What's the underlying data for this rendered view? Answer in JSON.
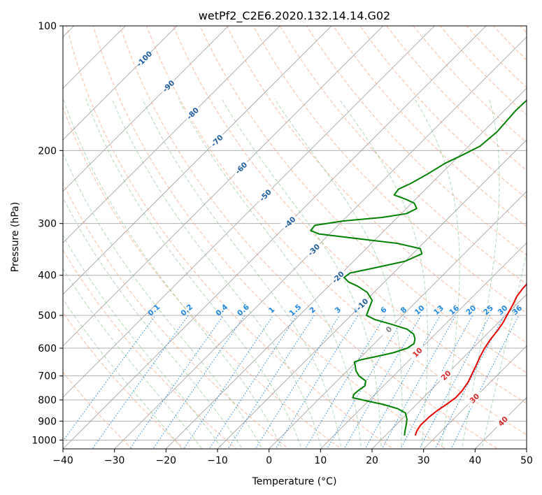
{
  "chart_data": {
    "type": "skew-t",
    "title": "wetPf2_C2E6.2020.132.14.14.G02",
    "xlabel": "Temperature (°C)",
    "ylabel": "Pressure (hPa)",
    "xlim": [
      -40,
      50
    ],
    "ylim": [
      1050,
      100
    ],
    "x_ticks": [
      "−40",
      "−30",
      "−20",
      "−10",
      "0",
      "10",
      "20",
      "30",
      "40",
      "50"
    ],
    "x_tick_values": [
      -40,
      -30,
      -20,
      -10,
      0,
      10,
      20,
      30,
      40,
      50
    ],
    "y_ticks": [
      "100",
      "200",
      "300",
      "400",
      "500",
      "600",
      "700",
      "800",
      "900",
      "1000"
    ],
    "y_tick_values": [
      100,
      200,
      300,
      400,
      500,
      600,
      700,
      800,
      900,
      1000
    ],
    "colors": {
      "temperature": "#e60000",
      "dewpoint": "#008000",
      "dry_adiabat": "#f4a582",
      "moist_adiabat": "#7fbf7f",
      "mixing_ratio": "#1e88e5",
      "isotherm": "#9e9e9e",
      "isotherm_label": "#1f5f9f",
      "mixing_label": "#1e88e5",
      "zero_label": "#808080",
      "positive_label": "#d62728"
    },
    "isotherm_labels": [
      {
        "t": -100,
        "text": "-100"
      },
      {
        "t": -90,
        "text": "-90"
      },
      {
        "t": -80,
        "text": "-80"
      },
      {
        "t": -70,
        "text": "-70"
      },
      {
        "t": -60,
        "text": "-60"
      },
      {
        "t": -50,
        "text": "-50"
      },
      {
        "t": -40,
        "text": "-40"
      },
      {
        "t": -30,
        "text": "-30"
      },
      {
        "t": -20,
        "text": "-20"
      },
      {
        "t": -10,
        "text": "-10"
      },
      {
        "t": 0,
        "text": "0"
      },
      {
        "t": 10,
        "text": "10"
      },
      {
        "t": 20,
        "text": "20"
      },
      {
        "t": 30,
        "text": "30"
      },
      {
        "t": 40,
        "text": "40"
      }
    ],
    "mixing_ratio_labels": [
      {
        "w": 0.1,
        "text": "0.1"
      },
      {
        "w": 0.2,
        "text": "0.2"
      },
      {
        "w": 0.4,
        "text": "0.4"
      },
      {
        "w": 0.6,
        "text": "0.6"
      },
      {
        "w": 1,
        "text": "1"
      },
      {
        "w": 1.5,
        "text": "1.5"
      },
      {
        "w": 2,
        "text": "2"
      },
      {
        "w": 3,
        "text": "3"
      },
      {
        "w": 4,
        "text": "4"
      },
      {
        "w": 6,
        "text": "6"
      },
      {
        "w": 8,
        "text": "8"
      },
      {
        "w": 10,
        "text": "10"
      },
      {
        "w": 13,
        "text": "13"
      },
      {
        "w": 16,
        "text": "16"
      },
      {
        "w": 20,
        "text": "20"
      },
      {
        "w": 25,
        "text": "25"
      },
      {
        "w": 30,
        "text": "30"
      },
      {
        "w": 36,
        "text": "36"
      }
    ],
    "temperature_profile": [
      {
        "p": 975,
        "t": 25.8
      },
      {
        "p": 950,
        "t": 25.2
      },
      {
        "p": 920,
        "t": 24.8
      },
      {
        "p": 880,
        "t": 24.9
      },
      {
        "p": 850,
        "t": 25.2
      },
      {
        "p": 820,
        "t": 25.8
      },
      {
        "p": 790,
        "t": 26.3
      },
      {
        "p": 760,
        "t": 26.2
      },
      {
        "p": 725,
        "t": 25.7
      },
      {
        "p": 690,
        "t": 24.8
      },
      {
        "p": 660,
        "t": 24.0
      },
      {
        "p": 630,
        "t": 23.1
      },
      {
        "p": 600,
        "t": 22.3
      },
      {
        "p": 570,
        "t": 21.7
      },
      {
        "p": 545,
        "t": 21.4
      },
      {
        "p": 520,
        "t": 20.9
      },
      {
        "p": 495,
        "t": 20.1
      },
      {
        "p": 470,
        "t": 19.3
      },
      {
        "p": 450,
        "t": 18.5
      },
      {
        "p": 430,
        "t": 18.1
      },
      {
        "p": 410,
        "t": 18.0
      },
      {
        "p": 390,
        "t": 17.6
      },
      {
        "p": 370,
        "t": 16.6
      },
      {
        "p": 350,
        "t": 15.5
      },
      {
        "p": 330,
        "t": 14.6
      },
      {
        "p": 315,
        "t": 14.0
      },
      {
        "p": 300,
        "t": 13.4
      },
      {
        "p": 285,
        "t": 12.5
      },
      {
        "p": 270,
        "t": 11.2
      },
      {
        "p": 255,
        "t": 9.7
      },
      {
        "p": 240,
        "t": 8.3
      },
      {
        "p": 225,
        "t": 7.0
      },
      {
        "p": 210,
        "t": 5.3
      },
      {
        "p": 195,
        "t": 3.6
      },
      {
        "p": 180,
        "t": 2.0
      },
      {
        "p": 165,
        "t": 0.5
      },
      {
        "p": 150,
        "t": -1.0
      },
      {
        "p": 138,
        "t": -2.4
      },
      {
        "p": 127,
        "t": -4.0
      },
      {
        "p": 118,
        "t": -5.0
      },
      {
        "p": 112,
        "t": -4.9
      },
      {
        "p": 106,
        "t": -3.6
      },
      {
        "p": 102,
        "t": -2.2
      },
      {
        "p": 99,
        "t": -1.0
      }
    ],
    "dewpoint_profile": [
      {
        "p": 975,
        "t": 23.7
      },
      {
        "p": 950,
        "t": 22.9
      },
      {
        "p": 920,
        "t": 22.0
      },
      {
        "p": 890,
        "t": 21.0
      },
      {
        "p": 860,
        "t": 19.5
      },
      {
        "p": 840,
        "t": 17.2
      },
      {
        "p": 820,
        "t": 13.5
      },
      {
        "p": 805,
        "t": 9.8
      },
      {
        "p": 790,
        "t": 6.3
      },
      {
        "p": 775,
        "t": 5.9
      },
      {
        "p": 760,
        "t": 6.0
      },
      {
        "p": 740,
        "t": 6.4
      },
      {
        "p": 720,
        "t": 5.6
      },
      {
        "p": 700,
        "t": 3.3
      },
      {
        "p": 680,
        "t": 1.7
      },
      {
        "p": 660,
        "t": 0.5
      },
      {
        "p": 648,
        "t": -0.3
      },
      {
        "p": 640,
        "t": 0.5
      },
      {
        "p": 628,
        "t": 3.0
      },
      {
        "p": 615,
        "t": 5.5
      },
      {
        "p": 600,
        "t": 7.3
      },
      {
        "p": 585,
        "t": 7.7
      },
      {
        "p": 570,
        "t": 7.0
      },
      {
        "p": 555,
        "t": 5.8
      },
      {
        "p": 540,
        "t": 3.6
      },
      {
        "p": 525,
        "t": -0.5
      },
      {
        "p": 512,
        "t": -4.5
      },
      {
        "p": 500,
        "t": -7.0
      },
      {
        "p": 480,
        "t": -7.9
      },
      {
        "p": 460,
        "t": -8.8
      },
      {
        "p": 440,
        "t": -11.3
      },
      {
        "p": 425,
        "t": -14.4
      },
      {
        "p": 415,
        "t": -17.0
      },
      {
        "p": 405,
        "t": -18.7
      },
      {
        "p": 395,
        "t": -18.4
      },
      {
        "p": 385,
        "t": -15.0
      },
      {
        "p": 370,
        "t": -10.0
      },
      {
        "p": 355,
        "t": -8.2
      },
      {
        "p": 345,
        "t": -9.5
      },
      {
        "p": 335,
        "t": -15.0
      },
      {
        "p": 325,
        "t": -25.0
      },
      {
        "p": 318,
        "t": -32.0
      },
      {
        "p": 312,
        "t": -34.3
      },
      {
        "p": 303,
        "t": -34.5
      },
      {
        "p": 296,
        "t": -30.0
      },
      {
        "p": 290,
        "t": -23.0
      },
      {
        "p": 284,
        "t": -19.0
      },
      {
        "p": 276,
        "t": -18.0
      },
      {
        "p": 268,
        "t": -19.5
      },
      {
        "p": 262,
        "t": -22.0
      },
      {
        "p": 256,
        "t": -25.0
      },
      {
        "p": 248,
        "t": -25.3
      },
      {
        "p": 240,
        "t": -24.0
      },
      {
        "p": 228,
        "t": -22.6
      },
      {
        "p": 215,
        "t": -21.3
      },
      {
        "p": 205,
        "t": -19.5
      },
      {
        "p": 195,
        "t": -17.8
      },
      {
        "p": 180,
        "t": -17.3
      },
      {
        "p": 160,
        "t": -17.8
      },
      {
        "p": 140,
        "t": -17.5
      },
      {
        "p": 125,
        "t": -16.9
      },
      {
        "p": 118,
        "t": -16.4
      },
      {
        "p": 112,
        "t": -16.4
      },
      {
        "p": 106,
        "t": -16.6
      },
      {
        "p": 99,
        "t": -17.6
      }
    ]
  }
}
